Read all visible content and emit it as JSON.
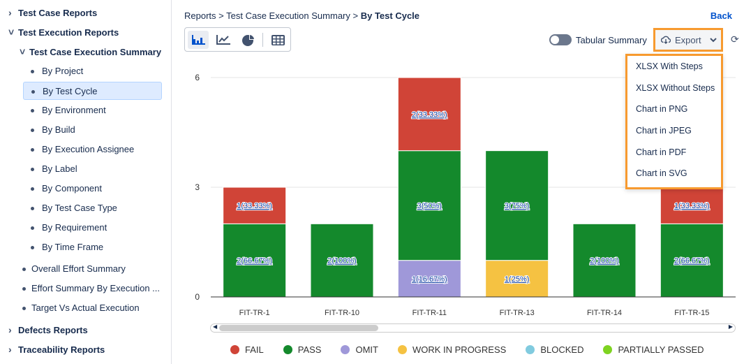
{
  "sidebar": {
    "items": [
      {
        "label": "Test Case Reports",
        "level": "l0",
        "chev": "›"
      },
      {
        "label": "Test Execution Reports",
        "level": "l1",
        "chev": "⌄"
      },
      {
        "label": "Test Case Execution Summary",
        "level": "l2",
        "chev": "⌄"
      },
      {
        "label": "By Project",
        "level": "l3"
      },
      {
        "label": "By Test Cycle",
        "level": "l3",
        "selected": true
      },
      {
        "label": "By Environment",
        "level": "l3"
      },
      {
        "label": "By Build",
        "level": "l3"
      },
      {
        "label": "By Execution Assignee",
        "level": "l3"
      },
      {
        "label": "By Label",
        "level": "l3"
      },
      {
        "label": "By Component",
        "level": "l3"
      },
      {
        "label": "By Test Case Type",
        "level": "l3"
      },
      {
        "label": "By Requirement",
        "level": "l3"
      },
      {
        "label": "By Time Frame",
        "level": "l3"
      },
      {
        "label": "Overall Effort Summary",
        "level": "l3b"
      },
      {
        "label": "Effort Summary By Execution ...",
        "level": "l3b"
      },
      {
        "label": "Target Vs Actual Execution",
        "level": "l3b"
      },
      {
        "label": "Defects Reports",
        "level": "l0",
        "chev": "›"
      },
      {
        "label": "Traceability Reports",
        "level": "l0",
        "chev": "›"
      }
    ]
  },
  "breadcrumb": {
    "items": [
      "Reports",
      "Test Case Execution Summary"
    ],
    "current": "By Test Cycle",
    "sep": ">"
  },
  "back_label": "Back",
  "toolbar": {
    "chart_types": [
      "bar-chart-icon",
      "line-chart-icon",
      "pie-chart-icon",
      "table-icon"
    ],
    "active": "bar-chart-icon",
    "tabular_label": "Tabular Summary",
    "tabular_on": false,
    "export_label": "Export"
  },
  "export_menu": [
    "XLSX With Steps",
    "XLSX Without Steps",
    "Chart in PNG",
    "Chart in JPEG",
    "Chart in PDF",
    "Chart in SVG"
  ],
  "chart_data": {
    "type": "bar",
    "stacked": true,
    "categories": [
      "FIT-TR-1",
      "FIT-TR-10",
      "FIT-TR-11",
      "FIT-TR-13",
      "FIT-TR-14",
      "FIT-TR-15"
    ],
    "ylim": [
      0,
      6
    ],
    "yticks": [
      0,
      3,
      6
    ],
    "grid": true,
    "legend": "bottom",
    "series": [
      {
        "name": "OMIT",
        "color": "#9f98d9",
        "values": [
          0,
          0,
          1,
          0,
          0,
          0
        ],
        "labels": [
          "",
          "",
          "1(16.67%)",
          "",
          "",
          ""
        ]
      },
      {
        "name": "WORK IN PROGRESS",
        "color": "#f5c242",
        "values": [
          0,
          0,
          0,
          1,
          0,
          0
        ],
        "labels": [
          "",
          "",
          "",
          "1(25%)",
          "",
          ""
        ]
      },
      {
        "name": "PASS",
        "color": "#14892c",
        "values": [
          2,
          2,
          3,
          3,
          2,
          2
        ],
        "labels": [
          "2(66.67%)",
          "2(100%)",
          "3(50%)",
          "3(75%)",
          "2(100%)",
          "2(66.67%)"
        ]
      },
      {
        "name": "FAIL",
        "color": "#d04437",
        "values": [
          1,
          0,
          2,
          0,
          0,
          1
        ],
        "labels": [
          "1(33.33%)",
          "",
          "2(33.33%)",
          "",
          "",
          "1(33.33%)"
        ]
      }
    ],
    "legend_items": [
      {
        "name": "FAIL",
        "color": "#d04437"
      },
      {
        "name": "PASS",
        "color": "#14892c"
      },
      {
        "name": "OMIT",
        "color": "#9f98d9"
      },
      {
        "name": "WORK IN PROGRESS",
        "color": "#f5c242"
      },
      {
        "name": "BLOCKED",
        "color": "#81cbdf"
      },
      {
        "name": "PARTIALLY PASSED",
        "color": "#7ed321"
      }
    ]
  }
}
